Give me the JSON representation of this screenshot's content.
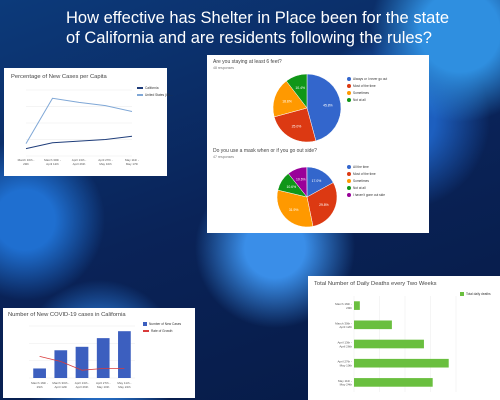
{
  "title": "How effective has Shelter in Place been for the state of California and are residents following the rules?",
  "chart_data": [
    {
      "type": "line",
      "title": "Percentage of New Cases per Capita",
      "categories": [
        "March 16th - 29th",
        "March 30th - April 12th",
        "April 13th - April 26th",
        "April 27th - May 10th",
        "May 11th - May 17th"
      ],
      "series": [
        {
          "name": "California",
          "values": [
            0.18,
            0.32,
            0.36,
            0.4,
            0.48
          ],
          "color": "#1f3d7a"
        },
        {
          "name": "United States (Ch...",
          "values": [
            0.3,
            1.4,
            1.3,
            1.22,
            1.08
          ],
          "color": "#7fa7d6"
        }
      ]
    },
    {
      "type": "pie",
      "title": "Are you staying at least 6 feet?",
      "subtitle": "48 responses",
      "slices": [
        {
          "label": "Always or I never go out",
          "pct": 45.8,
          "color": "#3366cc"
        },
        {
          "label": "Most of the time",
          "pct": 25.0,
          "color": "#dc3912"
        },
        {
          "label": "Sometimes",
          "pct": 18.8,
          "color": "#ff9900"
        },
        {
          "label": "Not at all",
          "pct": 10.4,
          "color": "#109618"
        }
      ]
    },
    {
      "type": "pie",
      "title": "Do you use a mask when or if you go out side?",
      "subtitle": "47 responses",
      "slices": [
        {
          "label": "All the time",
          "pct": 17.0,
          "color": "#3366cc"
        },
        {
          "label": "Most of the time",
          "pct": 29.8,
          "color": "#dc3912"
        },
        {
          "label": "Sometimes",
          "pct": 31.9,
          "color": "#ff9900"
        },
        {
          "label": "Not at all",
          "pct": 10.6,
          "color": "#109618"
        },
        {
          "label": "I haven't gone out side",
          "pct": 10.6,
          "color": "#990099"
        }
      ]
    },
    {
      "type": "bar",
      "title": "Number of New COVID-19 cases in California",
      "categories": [
        "March 16th - 29th",
        "March 30th - April 12th",
        "April 13th - April 26th",
        "April 27th - May 10th",
        "May 11th - May 24th"
      ],
      "series": [
        {
          "name": "Number of New Cases",
          "values": [
            5500,
            16000,
            18000,
            23000,
            27000
          ],
          "color": "#3c5fbf"
        },
        {
          "name": "Rate of Growth",
          "values": [
            2.5,
            1.9,
            0.9,
            1.1,
            1.1
          ],
          "color": "#d93b3b"
        }
      ]
    },
    {
      "type": "bar",
      "title": "Total Number of Daily Deaths every Two Weeks",
      "categories": [
        "March 16th - 29th",
        "March 30th - April 12th",
        "April 13th - April 26th",
        "April 27th - May 10th",
        "May 11th - May 24th"
      ],
      "series": [
        {
          "name": "Total daily deaths",
          "values": [
            40,
            260,
            480,
            650,
            540
          ],
          "color": "#6abf3f"
        }
      ],
      "orientation": "horizontal"
    }
  ]
}
